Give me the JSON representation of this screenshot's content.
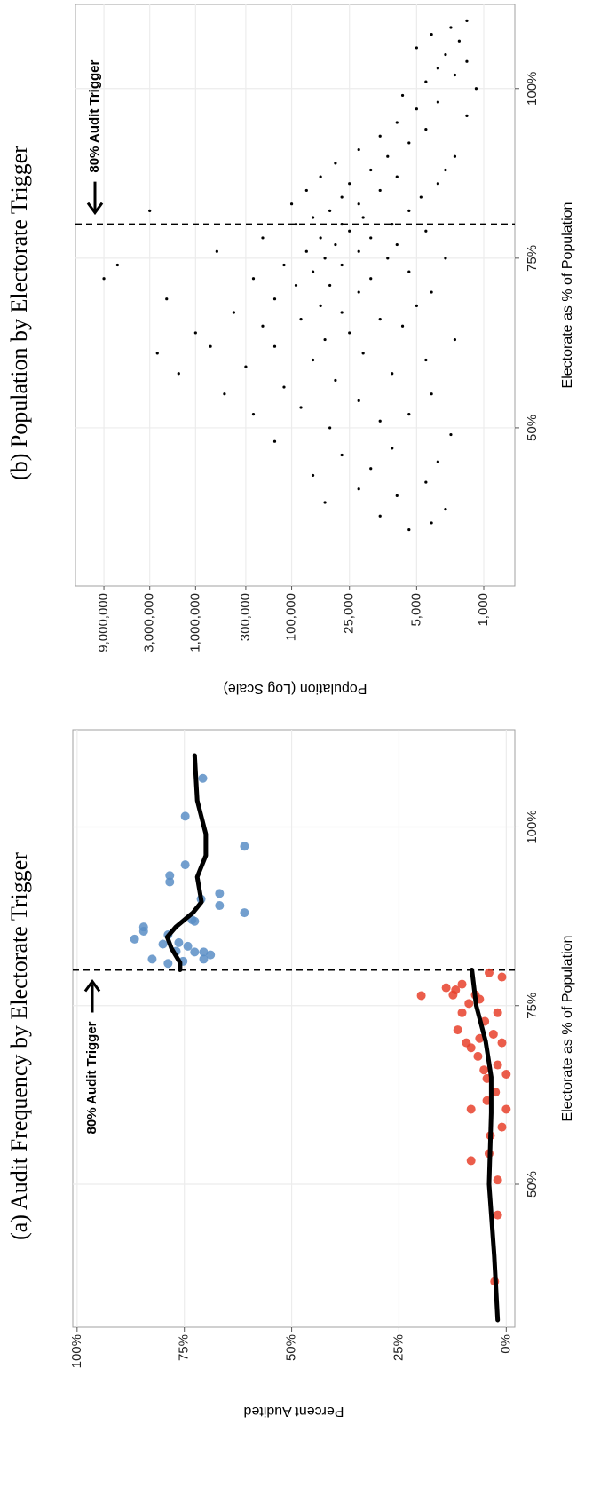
{
  "chart_data": [
    {
      "type": "scatter",
      "title": "(a) Audit Frequency by Electorate Trigger",
      "x_label": "Electorate as % of Population",
      "y_label": "Percent Audited",
      "xlim": [
        30,
        113.6
      ],
      "ylim": [
        -2,
        101
      ],
      "xticks": [
        {
          "value": 50,
          "label": "50%"
        },
        {
          "value": 75,
          "label": "75%"
        },
        {
          "value": 100,
          "label": "100%"
        }
      ],
      "yticks": [
        {
          "value": 0,
          "label": "0%"
        },
        {
          "value": 25,
          "label": "25%"
        },
        {
          "value": 50,
          "label": "50%"
        },
        {
          "value": 75,
          "label": "75%"
        },
        {
          "value": 100,
          "label": "100%"
        }
      ],
      "grid": true,
      "trigger": 80,
      "annotation": "80% Audit Trigger",
      "series": [
        {
          "color": "#e8412c",
          "x": [
            76.4,
            77.5,
            76.5,
            77.2,
            78,
            53.3,
            60.5,
            74,
            79,
            79.6,
            72.8,
            71,
            66.7,
            64.8,
            62.9,
            60.5,
            58,
            56.8,
            54.3,
            50.6,
            45.7,
            36.4,
            70.4,
            69.1,
            67.9,
            66,
            76.5,
            75.3,
            74,
            75.9,
            71.6,
            69.8,
            69.8,
            65.4,
            61.7
          ],
          "values": [
            19.8,
            14,
            12.4,
            11.8,
            10.3,
            8.2,
            8.2,
            2,
            1,
            4,
            5,
            3,
            2,
            4.5,
            2.5,
            0,
            1,
            3.7,
            4,
            2,
            2,
            2.7,
            6.2,
            8.2,
            6.6,
            5.2,
            7.2,
            8.7,
            10.3,
            6.2,
            11.3,
            9.3,
            1,
            0,
            4.5
          ]
        },
        {
          "color": "#5b8ec6",
          "x": [
            84.3,
            86,
            85.4,
            81.5,
            83.6,
            80.9,
            84.9,
            92.3,
            93.2,
            82.6,
            83.8,
            81.2,
            94.7,
            101.5,
            83.3,
            87,
            86.8,
            82.5,
            89.9,
            106.8,
            81.5,
            82.5,
            82.1,
            90.7,
            89,
            97.3,
            88
          ],
          "values": [
            86.6,
            84.5,
            84.5,
            82.5,
            80,
            78.8,
            78.8,
            78.4,
            78.4,
            76.9,
            76.3,
            75.3,
            74.8,
            74.8,
            74.2,
            73.2,
            72.6,
            72.6,
            71.1,
            70.7,
            70.5,
            70.5,
            68.9,
            66.8,
            66.8,
            61,
            61
          ]
        }
      ],
      "fit_lines": [
        {
          "color": "#000000",
          "x": [
            31,
            40,
            50,
            60,
            65,
            70,
            75,
            80
          ],
          "values": [
            2,
            2.8,
            4,
            3.5,
            3.5,
            4.8,
            7,
            8
          ]
        },
        {
          "color": "#000000",
          "x": [
            80,
            81,
            83,
            84.6,
            86,
            88,
            89.5,
            93,
            96,
            99,
            103.7,
            110
          ],
          "values": [
            76,
            76,
            78,
            79,
            77,
            73,
            71,
            72,
            70,
            70,
            72,
            72.6
          ]
        }
      ]
    },
    {
      "type": "scatter",
      "title": "(b) Population by Electorate Trigger",
      "x_label": "Electorate as % of Population",
      "y_label": "Population (Log Scale)",
      "xlim": [
        26.7,
        112.4
      ],
      "ylim": [
        475,
        17800000
      ],
      "log": true,
      "xticks": [
        {
          "value": 50,
          "label": "50%"
        },
        {
          "value": 75,
          "label": "75%"
        },
        {
          "value": 100,
          "label": "100%"
        }
      ],
      "yticks": [
        {
          "value": 1000,
          "label": "1,000"
        },
        {
          "value": 5000,
          "label": "5,000"
        },
        {
          "value": 25000,
          "label": "25,000"
        },
        {
          "value": 100000,
          "label": "100,000"
        },
        {
          "value": 300000,
          "label": "300,000"
        },
        {
          "value": 1000000,
          "label": "1,000,000"
        },
        {
          "value": 3000000,
          "label": "3,000,000"
        },
        {
          "value": 9000000,
          "label": "9,000,000"
        }
      ],
      "grid": true,
      "trigger": 80,
      "annotation": "80% Audit Trigger",
      "series": [
        {
          "color": "#000000",
          "x": [
            35,
            36,
            37,
            38,
            39,
            40,
            41,
            42,
            43,
            44,
            45,
            46,
            47,
            48,
            49,
            50,
            51,
            52,
            52,
            53,
            54,
            55,
            55,
            56,
            57,
            58,
            58,
            59,
            60,
            60,
            61,
            61,
            62,
            62,
            63,
            63,
            64,
            64,
            65,
            65,
            66,
            66,
            67,
            67,
            68,
            68,
            69,
            69,
            70,
            70,
            71,
            71,
            72,
            72,
            72,
            73,
            73,
            74,
            74,
            74,
            75,
            75,
            75,
            76,
            76,
            76,
            77,
            77,
            78,
            78,
            78,
            79,
            79,
            80,
            80,
            80,
            81,
            81,
            82,
            82,
            82,
            83,
            83,
            84,
            84,
            85,
            85,
            86,
            86,
            87,
            87,
            88,
            88,
            89,
            90,
            90,
            91,
            92,
            93,
            94,
            95,
            96,
            97,
            98,
            99,
            100,
            101,
            102,
            103,
            104,
            105,
            106,
            107,
            108,
            109,
            110
          ],
          "values": [
            6000,
            3500,
            12000,
            2500,
            45000,
            8000,
            20000,
            4000,
            60000,
            15000,
            3000,
            30000,
            9000,
            150000,
            2200,
            40000,
            12000,
            250000,
            6000,
            80000,
            20000,
            500000,
            3500,
            120000,
            35000,
            1500000,
            9000,
            300000,
            60000,
            4000,
            2500000,
            18000,
            700000,
            150000,
            45000,
            2000,
            1000000,
            25000,
            200000,
            7000,
            80000,
            12000,
            400000,
            30000,
            50000,
            5000,
            2000000,
            150000,
            20000,
            3500,
            90000,
            40000,
            9000000,
            250000,
            15000,
            60000,
            6000,
            6500000,
            120000,
            30000,
            45000,
            10000,
            2500,
            600000,
            70000,
            20000,
            35000,
            8000,
            200000,
            50000,
            15000,
            25000,
            4000,
            90000,
            30000,
            9000,
            60000,
            18000,
            3000000,
            40000,
            6000,
            100000,
            20000,
            30000,
            4500,
            70000,
            12000,
            25000,
            3000,
            50000,
            8000,
            15000,
            2500,
            35000,
            10000,
            2000,
            20000,
            6000,
            12000,
            4000,
            8000,
            1500,
            5000,
            3000,
            7000,
            1200,
            4000,
            2000,
            3000,
            1500,
            2500,
            5000,
            1800,
            3500,
            2200,
            1500
          ]
        }
      ]
    }
  ]
}
